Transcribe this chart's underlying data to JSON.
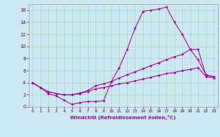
{
  "xlabel": "Windchill (Refroidissement éolien,°C)",
  "xlim": [
    -0.5,
    23.5
  ],
  "ylim": [
    0,
    17
  ],
  "xticks": [
    0,
    1,
    2,
    3,
    4,
    5,
    6,
    7,
    8,
    9,
    10,
    11,
    12,
    13,
    14,
    15,
    16,
    17,
    18,
    19,
    20,
    21,
    22,
    23
  ],
  "yticks": [
    0,
    2,
    4,
    6,
    8,
    10,
    12,
    14,
    16
  ],
  "bg_color": "#cce8f0",
  "grid_color": "#b0d4c8",
  "line_color": "#aa00aa",
  "line1_x": [
    0,
    1,
    2,
    3,
    4,
    5,
    6,
    7,
    8,
    9,
    10,
    11,
    12,
    13,
    14,
    15,
    16,
    17,
    18,
    19,
    20,
    21,
    22,
    23
  ],
  "line1_y": [
    4.0,
    3.2,
    2.2,
    1.8,
    1.1,
    0.4,
    0.7,
    0.9,
    0.9,
    1.0,
    4.2,
    6.5,
    9.5,
    13.0,
    15.8,
    16.0,
    16.2,
    16.5,
    14.0,
    12.0,
    9.5,
    7.8,
    5.3,
    5.0
  ],
  "line2_x": [
    0,
    1,
    2,
    3,
    4,
    5,
    6,
    7,
    8,
    9,
    10,
    11,
    12,
    13,
    14,
    15,
    16,
    17,
    18,
    19,
    20,
    21,
    22,
    23
  ],
  "line2_y": [
    4.0,
    3.2,
    2.5,
    2.2,
    2.0,
    2.0,
    2.3,
    2.7,
    3.5,
    3.8,
    4.2,
    4.8,
    5.3,
    5.8,
    6.3,
    6.8,
    7.3,
    7.8,
    8.3,
    8.7,
    9.5,
    9.5,
    5.2,
    5.0
  ],
  "line3_x": [
    0,
    1,
    2,
    3,
    4,
    5,
    6,
    7,
    8,
    9,
    10,
    11,
    12,
    13,
    14,
    15,
    16,
    17,
    18,
    19,
    20,
    21,
    22,
    23
  ],
  "line3_y": [
    4.0,
    3.2,
    2.5,
    2.2,
    2.0,
    2.0,
    2.2,
    2.5,
    3.0,
    3.2,
    3.5,
    3.8,
    4.0,
    4.3,
    4.6,
    4.9,
    5.2,
    5.5,
    5.7,
    6.0,
    6.2,
    6.5,
    5.0,
    4.8
  ]
}
